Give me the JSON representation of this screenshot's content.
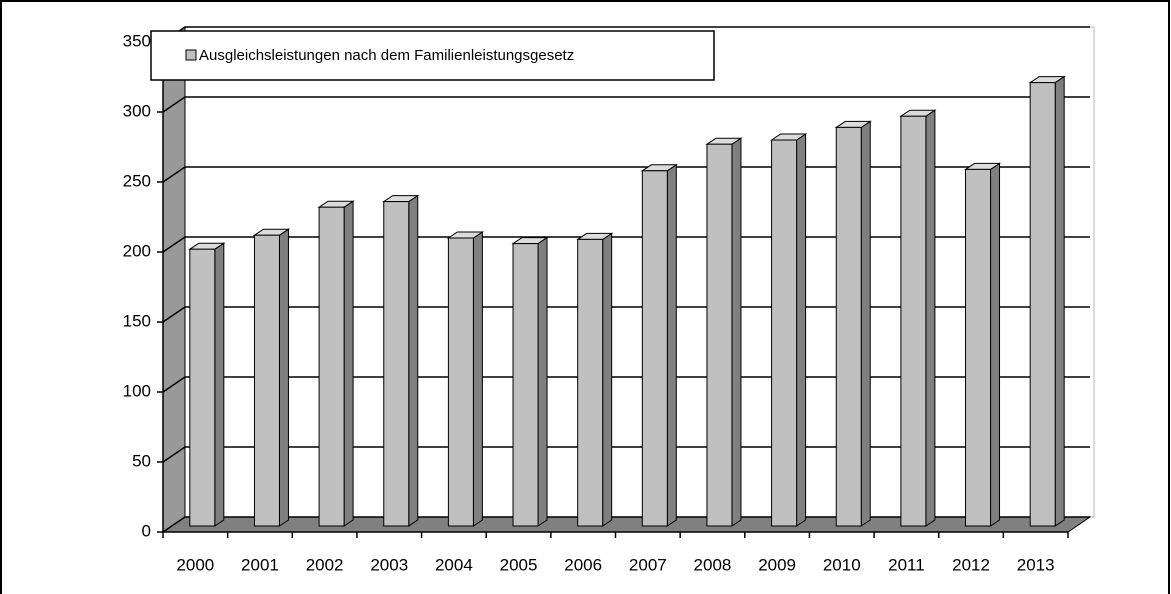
{
  "chart_data": {
    "type": "bar3d",
    "categories": [
      "2000",
      "2001",
      "2002",
      "2003",
      "2004",
      "2005",
      "2006",
      "2007",
      "2008",
      "2009",
      "2010",
      "2011",
      "2012",
      "2013"
    ],
    "series": [
      {
        "name": "Ausgleichsleistungen nach dem Familienleistungsgesetz",
        "color": "#c0c0c0",
        "values": [
          202,
          212,
          232,
          236,
          210,
          206,
          209,
          258,
          277,
          280,
          289,
          297,
          259,
          321
        ]
      }
    ],
    "ylim": [
      0,
      350
    ],
    "yticks": [
      0,
      50,
      100,
      150,
      200,
      250,
      300,
      350
    ],
    "grid": true
  }
}
